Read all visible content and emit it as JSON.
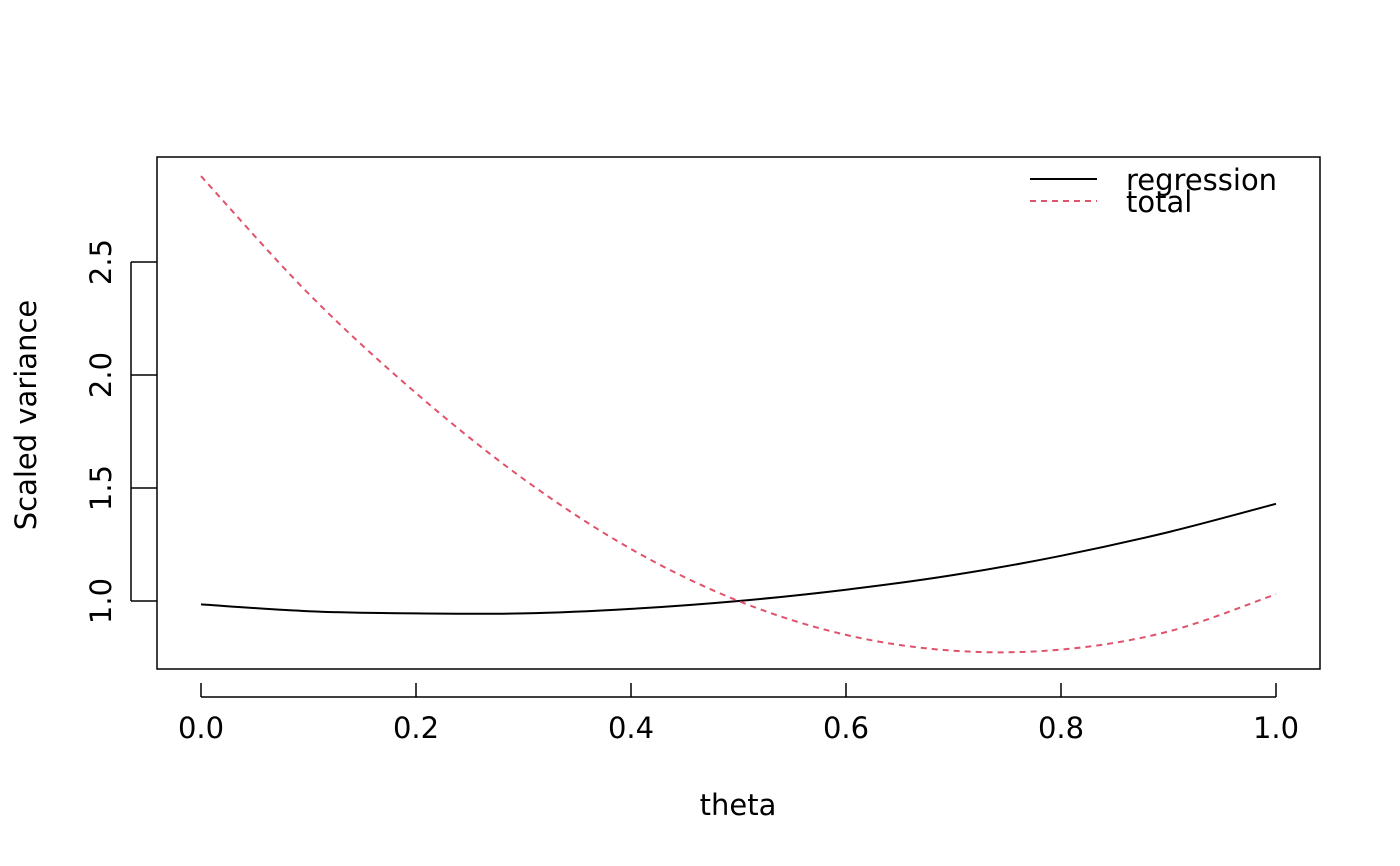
{
  "chart_data": {
    "type": "line",
    "title": "",
    "xlabel": "theta",
    "ylabel": "Scaled variance",
    "xlim": [
      0.0,
      1.0
    ],
    "ylim": [
      0.77,
      2.88
    ],
    "x_ticks": [
      "0.0",
      "0.2",
      "0.4",
      "0.6",
      "0.8",
      "1.0"
    ],
    "y_ticks": [
      "1.0",
      "1.5",
      "2.0",
      "2.5"
    ],
    "grid": false,
    "legend_position": "top-right",
    "x": [
      0.0,
      0.1,
      0.2,
      0.3,
      0.4,
      0.5,
      0.6,
      0.7,
      0.8,
      0.9,
      1.0
    ],
    "series": [
      {
        "name": "regression",
        "color": "#000000",
        "line_style": "solid",
        "values": [
          0.985,
          0.955,
          0.945,
          0.945,
          0.965,
          1.0,
          1.05,
          1.115,
          1.2,
          1.305,
          1.43
        ]
      },
      {
        "name": "total",
        "color": "#DF536B",
        "line_style": "dashed",
        "values": [
          2.88,
          2.36,
          1.92,
          1.54,
          1.23,
          1.0,
          0.85,
          0.78,
          0.785,
          0.865,
          1.03
        ]
      }
    ]
  }
}
